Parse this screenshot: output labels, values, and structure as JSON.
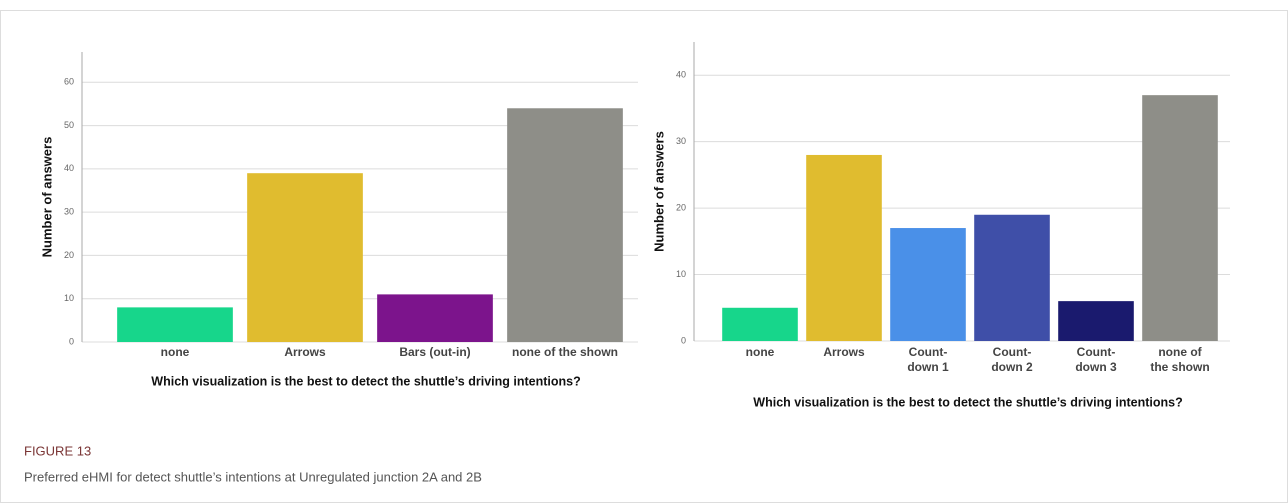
{
  "chart_data": [
    {
      "type": "bar",
      "ylabel": "Number of answers",
      "xlabel": "Which visualization is the best to detect the shuttle’s driving intentions?",
      "categories": [
        [
          "none"
        ],
        [
          "Arrows"
        ],
        [
          "Bars (out-in)"
        ],
        [
          "none of the shown"
        ]
      ],
      "values": [
        8,
        39,
        11,
        54
      ],
      "colors": [
        "#17d68b",
        "#e0bc2f",
        "#7c148c",
        "#8e8e88"
      ],
      "ylim": [
        0,
        67
      ],
      "yticks": [
        0,
        10,
        20,
        30,
        40,
        50,
        60
      ],
      "grid": true
    },
    {
      "type": "bar",
      "ylabel": "Number of answers",
      "xlabel": "Which visualization is the best to detect the shuttle’s driving intentions?",
      "categories": [
        [
          "none"
        ],
        [
          "Arrows"
        ],
        [
          "Count-",
          "down 1"
        ],
        [
          "Count-",
          "down 2"
        ],
        [
          "Count-",
          "down 3"
        ],
        [
          "none of",
          "the shown"
        ]
      ],
      "values": [
        5,
        28,
        17,
        19,
        6,
        37
      ],
      "colors": [
        "#17d68b",
        "#e0bc2f",
        "#4a90e8",
        "#3f4fa8",
        "#1a1a6e",
        "#8e8e88"
      ],
      "ylim": [
        0,
        45
      ],
      "yticks": [
        0,
        10,
        20,
        30,
        40
      ],
      "grid": true
    }
  ],
  "figure": {
    "label": "FIGURE 13",
    "caption": "Preferred eHMI for detect shuttle’s intentions at Unregulated junction 2A and 2B"
  }
}
